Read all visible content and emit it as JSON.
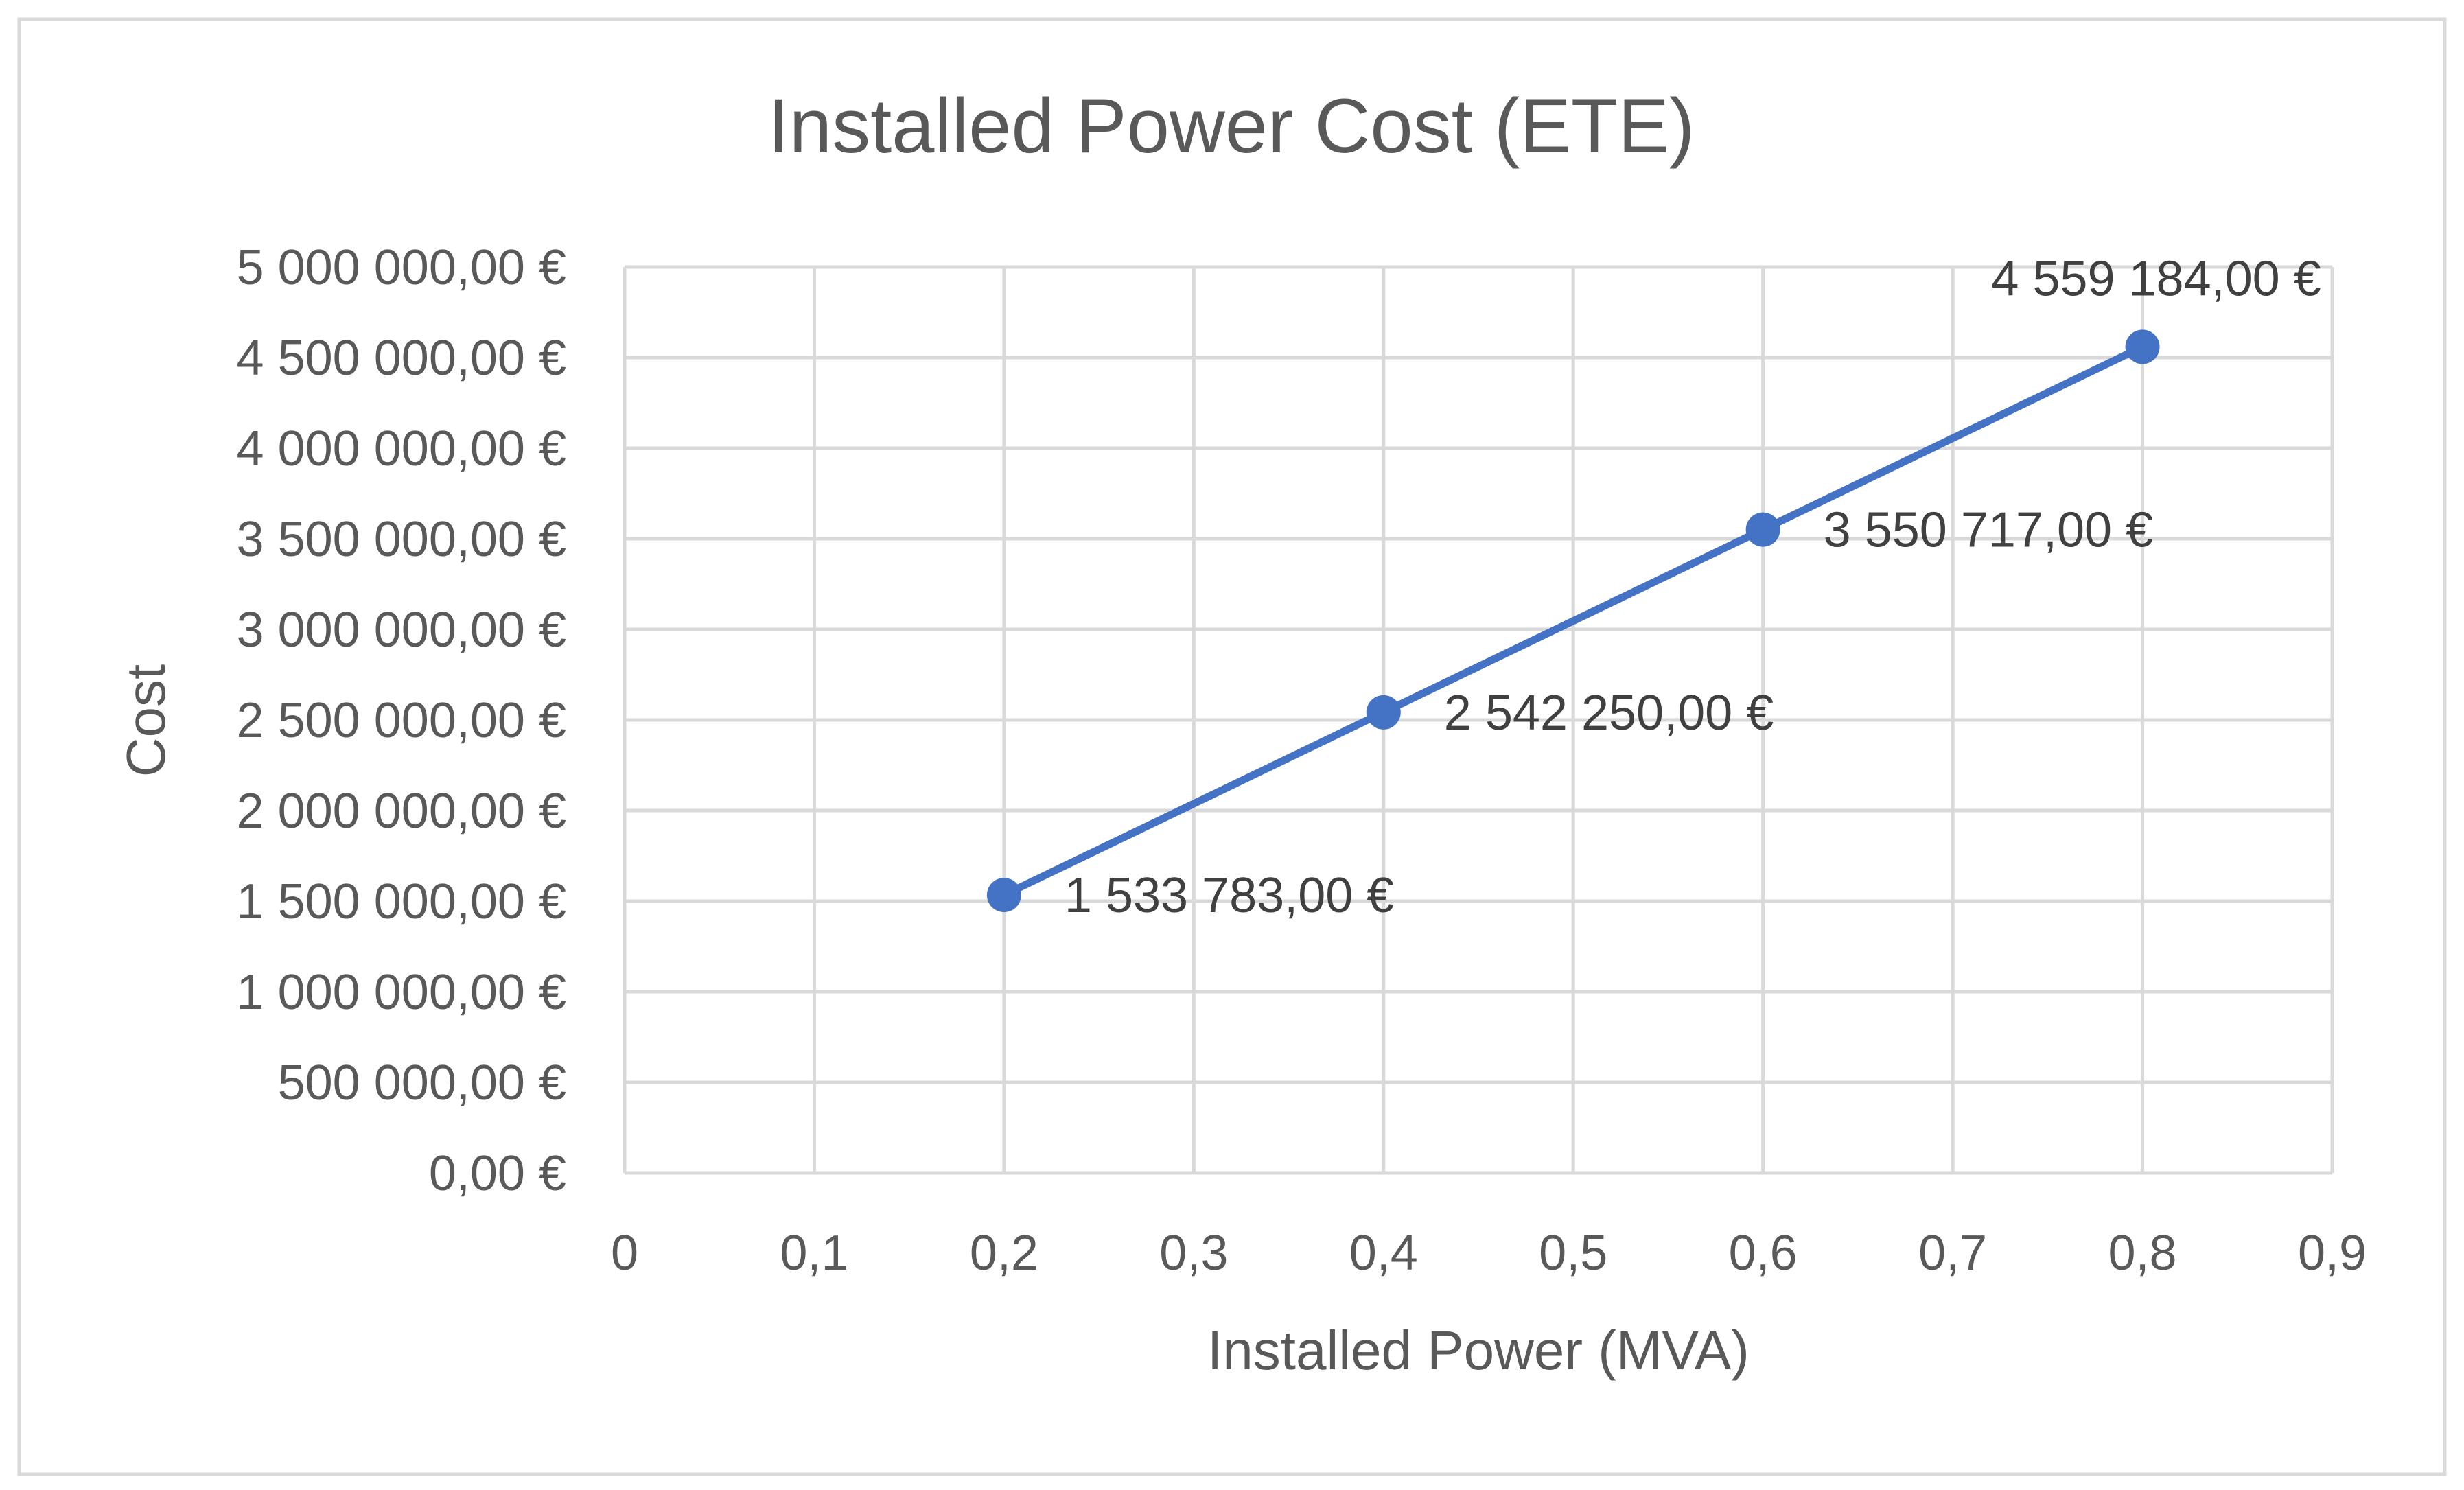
{
  "chart_data": {
    "type": "line",
    "title": "Installed Power Cost (ETE)",
    "xlabel": "Installed Power (MVA)",
    "ylabel": "Cost",
    "xlim": [
      0,
      0.9
    ],
    "ylim": [
      0,
      5000000
    ],
    "grid": true,
    "legend": "none",
    "x_ticks": [
      "0",
      "0,1",
      "0,2",
      "0,3",
      "0,4",
      "0,5",
      "0,6",
      "0,7",
      "0,8",
      "0,9"
    ],
    "y_ticks": [
      "0,00 €",
      "500 000,00 €",
      "1 000 000,00 €",
      "1 500 000,00 €",
      "2 000 000,00 €",
      "2 500 000,00 €",
      "3 000 000,00 €",
      "3 500 000,00 €",
      "4 000 000,00 €",
      "4 500 000,00 €",
      "5 000 000,00 €"
    ],
    "series": [
      {
        "color": "#4472C4",
        "x": [
          0.2,
          0.4,
          0.6,
          0.8
        ],
        "y": [
          1533783,
          2542250,
          3550717,
          4559184
        ],
        "data_labels": [
          "1 533 783,00 €",
          "2 542 250,00 €",
          "3 550 717,00 €",
          "4 559 184,00 €"
        ]
      }
    ]
  }
}
